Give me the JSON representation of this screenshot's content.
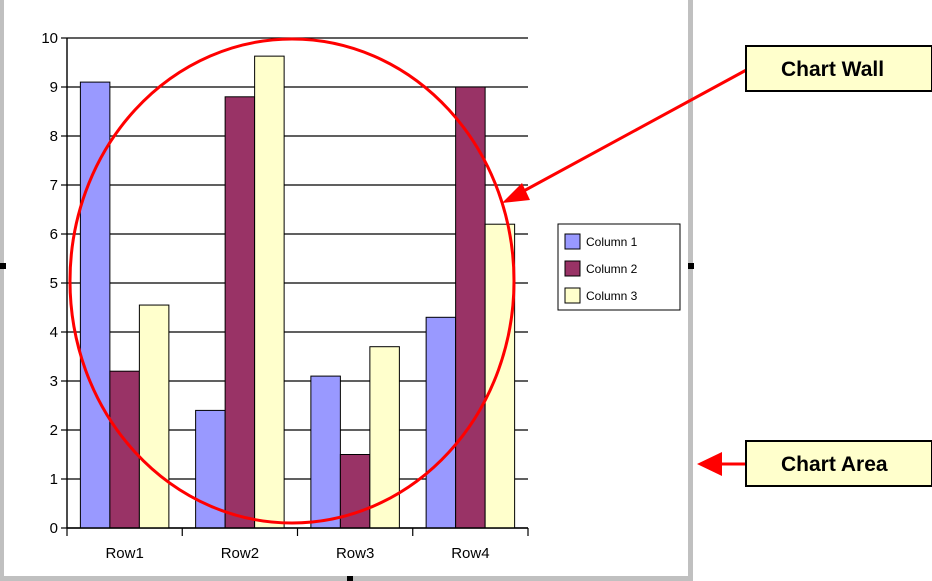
{
  "chart_data": {
    "type": "bar",
    "categories": [
      "Row1",
      "Row2",
      "Row3",
      "Row4"
    ],
    "series": [
      {
        "name": "Column 1",
        "values": [
          9.1,
          2.4,
          3.1,
          4.3
        ]
      },
      {
        "name": "Column 2",
        "values": [
          3.2,
          8.8,
          1.5,
          9.0
        ]
      },
      {
        "name": "Column 3",
        "values": [
          4.55,
          9.63,
          3.7,
          6.2
        ]
      }
    ],
    "ylim": [
      0,
      10
    ],
    "yticks": [
      "0",
      "1",
      "2",
      "3",
      "4",
      "5",
      "6",
      "7",
      "8",
      "9",
      "10"
    ],
    "grid": true,
    "legend_position": "right",
    "colors": [
      "#9999ff",
      "#993366",
      "#ffffcc"
    ]
  },
  "callouts": {
    "chart_wall": "Chart Wall",
    "chart_area": "Chart Area"
  },
  "colors": {
    "annotation": "#ff0000",
    "callout_fill": "#ffffcc",
    "chart_border": "#c0c0c0"
  }
}
